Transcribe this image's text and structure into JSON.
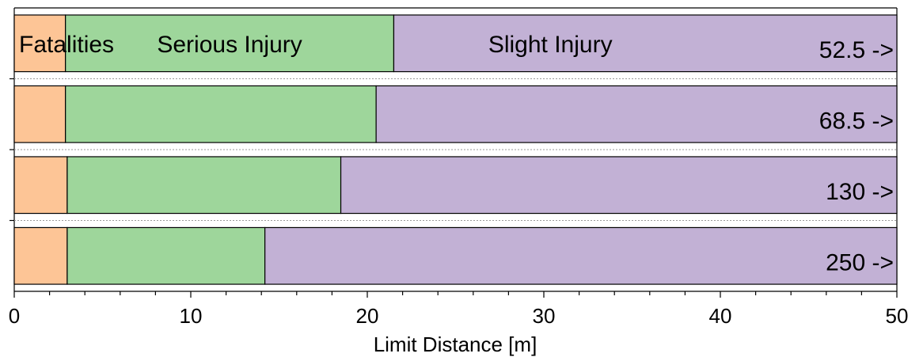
{
  "chart_data": {
    "type": "bar",
    "orientation": "horizontal",
    "stacked": true,
    "xlabel": "Limit Distance  [m]",
    "xlim": [
      0,
      50
    ],
    "xticks": [
      0,
      10,
      20,
      30,
      40,
      50
    ],
    "rows": [
      {
        "end_label": "52.5 ->",
        "boundaries": [
          2.9,
          21.5
        ]
      },
      {
        "end_label": "68.5 ->",
        "boundaries": [
          2.9,
          20.5
        ]
      },
      {
        "end_label": "130 ->",
        "boundaries": [
          3.0,
          18.5
        ]
      },
      {
        "end_label": "250 ->",
        "boundaries": [
          3.0,
          14.2
        ]
      }
    ],
    "segments": [
      {
        "name": "Fatalities",
        "color": "#fdc596"
      },
      {
        "name": "Serious Injury",
        "color": "#9ed69b"
      },
      {
        "name": "Slight Injury",
        "color": "#c2b1d5"
      }
    ],
    "segment_labels_row": 0
  }
}
